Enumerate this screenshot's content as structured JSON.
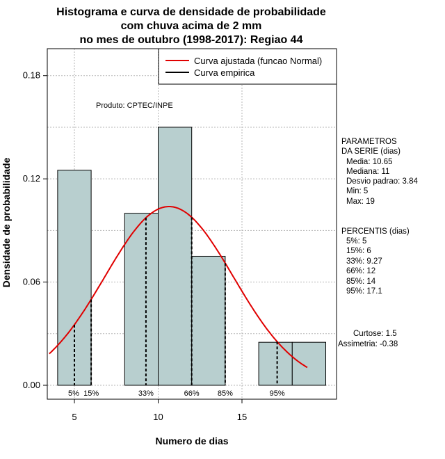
{
  "chart_data": {
    "type": "histogram",
    "title": [
      "Histograma e curva de densidade de probabilidade",
      "com chuva acima de 2 mm",
      "no mes de outubro (1998-2017): Regiao 44"
    ],
    "xlabel": "Numero de dias",
    "ylabel": "Densidade de probabilidade",
    "xlim": [
      3.5,
      20.8
    ],
    "ylim": [
      0,
      0.19
    ],
    "xticks": [
      5,
      10,
      15
    ],
    "yticks": [
      0.0,
      0.06,
      0.12,
      0.18
    ],
    "ytick_labels": [
      "0.00",
      "0.06",
      "0.12",
      "0.18"
    ],
    "grid": true,
    "bars": [
      {
        "x0": 4,
        "x1": 6,
        "density": 0.125
      },
      {
        "x0": 6,
        "x1": 8,
        "density": 0.0
      },
      {
        "x0": 8,
        "x1": 10,
        "density": 0.1
      },
      {
        "x0": 10,
        "x1": 12,
        "density": 0.15
      },
      {
        "x0": 12,
        "x1": 14,
        "density": 0.075
      },
      {
        "x0": 14,
        "x1": 16,
        "density": 0.0
      },
      {
        "x0": 16,
        "x1": 18,
        "density": 0.025
      },
      {
        "x0": 18,
        "x1": 20,
        "density": 0.025
      }
    ],
    "bar_color": "#b8cfcf",
    "normal_curve": {
      "mean": 10.65,
      "sd": 3.84,
      "x_start": 3.5,
      "x_end": 18.9,
      "color": "#e00000"
    },
    "percentile_lines": [
      {
        "label": "5%",
        "x": 5
      },
      {
        "label": "15%",
        "x": 6
      },
      {
        "label": "33%",
        "x": 9.27
      },
      {
        "label": "66%",
        "x": 12
      },
      {
        "label": "85%",
        "x": 14
      },
      {
        "label": "95%",
        "x": 17.1
      }
    ],
    "legend": [
      {
        "label": "Curva ajustada (funcao Normal)",
        "color": "#e00000"
      },
      {
        "label": "Curva empirica",
        "color": "#000000"
      }
    ],
    "legend_position": "top-right",
    "annotation": "Produto: CPTEC/INPE",
    "parameters": {
      "heading": [
        "PARAMETROS",
        "DA SERIE (dias)"
      ],
      "lines": [
        "Media: 10.65",
        "Mediana: 11",
        "Desvio padrao: 3.84",
        "Min: 5",
        "Max: 19"
      ]
    },
    "percentiles": {
      "heading": "PERCENTIS (dias)",
      "lines": [
        "5%: 5",
        "15%: 6",
        "33%: 9.27",
        "66%: 12",
        "85%: 14",
        "95%: 17.1"
      ]
    },
    "shape": {
      "lines": [
        "Curtose: 1.5",
        "Assimetria: -0.38"
      ]
    }
  }
}
